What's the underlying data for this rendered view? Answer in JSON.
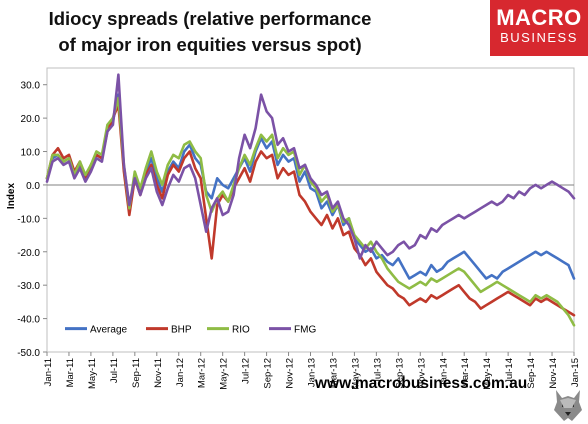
{
  "title_lines": [
    "Idiocy spreads (relative performance",
    "of major iron equities versus spot)"
  ],
  "logo": {
    "line1": "MACRO",
    "line2": "BUSINESS"
  },
  "footer": "www.macrobusiness.com.au",
  "chart_data": {
    "type": "line",
    "ylabel": "Index",
    "xlabel": "",
    "ylim": [
      -50,
      35
    ],
    "yticks": [
      -50,
      -40,
      -30,
      -20,
      -10,
      0,
      10,
      20,
      30
    ],
    "ytick_labels": [
      "-50.0",
      "-40.0",
      "-30.0",
      "-20.0",
      "-10.0",
      "0.0",
      "10.0",
      "20.0",
      "30.0"
    ],
    "xlim": [
      0,
      48
    ],
    "xtick_labels": [
      "Jan-11",
      "Mar-11",
      "May-11",
      "Jul-11",
      "Sep-11",
      "Nov-11",
      "Jan-12",
      "Mar-12",
      "May-12",
      "Jul-12",
      "Sep-12",
      "Nov-12",
      "Jan-13",
      "Mar-13",
      "May-13",
      "Jul-13",
      "Sep-13",
      "Nov-13",
      "Jan-14",
      "Mar-14",
      "May-14",
      "Jul-14",
      "Sep-14",
      "Nov-14",
      "Jan-15"
    ],
    "grid": false,
    "legend_position": "bottom-left",
    "series": [
      {
        "name": "Average",
        "color": "#4472c4",
        "x": [
          0,
          0.5,
          1,
          1.5,
          2,
          2.5,
          3,
          3.5,
          4,
          4.5,
          5,
          5.5,
          6,
          6.5,
          7,
          7.5,
          8,
          8.5,
          9,
          9.5,
          10,
          10.5,
          11,
          11.5,
          12,
          12.5,
          13,
          13.5,
          14,
          14.5,
          15,
          15.5,
          16,
          16.5,
          17,
          17.5,
          18,
          18.5,
          19,
          19.5,
          20,
          20.5,
          21,
          21.5,
          22,
          22.5,
          23,
          23.5,
          24,
          24.5,
          25,
          25.5,
          26,
          26.5,
          27,
          27.5,
          28,
          28.5,
          29,
          29.5,
          30,
          30.5,
          31,
          31.5,
          32,
          32.5,
          33,
          33.5,
          34,
          34.5,
          35,
          35.5,
          36,
          36.5,
          37,
          37.5,
          38,
          38.5,
          39,
          39.5,
          40,
          40.5,
          41,
          41.5,
          42,
          42.5,
          43,
          43.5,
          44,
          44.5,
          45,
          45.5,
          46,
          46.5,
          47,
          47.5,
          48
        ],
        "values": [
          2,
          8,
          9,
          7,
          8,
          3,
          6,
          2,
          5,
          9,
          8,
          17,
          19,
          27,
          5,
          -8,
          3,
          -2,
          4,
          8,
          2,
          -2,
          4,
          7,
          5,
          10,
          12,
          8,
          6,
          -2,
          -4,
          2,
          0,
          -1,
          2,
          5,
          8,
          4,
          10,
          14,
          11,
          13,
          6,
          9,
          7,
          8,
          1,
          4,
          -1,
          -2,
          -7,
          -5,
          -9,
          -6,
          -12,
          -10,
          -16,
          -18,
          -20,
          -19,
          -22,
          -21,
          -23,
          -24,
          -22,
          -25,
          -28,
          -27,
          -26,
          -27,
          -24,
          -26,
          -25,
          -23,
          -22,
          -21,
          -20,
          -22,
          -24,
          -26,
          -28,
          -27,
          -28,
          -26,
          -25,
          -24,
          -23,
          -22,
          -21,
          -20,
          -21,
          -20,
          -21,
          -22,
          -23,
          -24,
          -28
        ]
      },
      {
        "name": "BHP",
        "color": "#c0392b",
        "x": [
          0,
          0.5,
          1,
          1.5,
          2,
          2.5,
          3,
          3.5,
          4,
          4.5,
          5,
          5.5,
          6,
          6.5,
          7,
          7.5,
          8,
          8.5,
          9,
          9.5,
          10,
          10.5,
          11,
          11.5,
          12,
          12.5,
          13,
          13.5,
          14,
          14.5,
          15,
          15.5,
          16,
          16.5,
          17,
          17.5,
          18,
          18.5,
          19,
          19.5,
          20,
          20.5,
          21,
          21.5,
          22,
          22.5,
          23,
          23.5,
          24,
          24.5,
          25,
          25.5,
          26,
          26.5,
          27,
          27.5,
          28,
          28.5,
          29,
          29.5,
          30,
          30.5,
          31,
          31.5,
          32,
          32.5,
          33,
          33.5,
          34,
          34.5,
          35,
          35.5,
          36,
          36.5,
          37,
          37.5,
          38,
          38.5,
          39,
          39.5,
          40,
          40.5,
          41,
          41.5,
          42,
          42.5,
          43,
          43.5,
          44,
          44.5,
          45,
          45.5,
          46,
          46.5,
          47,
          47.5,
          48
        ],
        "values": [
          2,
          9,
          11,
          8,
          9,
          4,
          7,
          2,
          6,
          9,
          8,
          16,
          20,
          24,
          4,
          -9,
          2,
          -3,
          3,
          6,
          0,
          -4,
          3,
          6,
          4,
          8,
          10,
          5,
          2,
          -10,
          -22,
          -6,
          -3,
          -5,
          -1,
          2,
          5,
          1,
          7,
          10,
          8,
          9,
          2,
          5,
          3,
          4,
          -3,
          -5,
          -8,
          -10,
          -12,
          -9,
          -13,
          -10,
          -15,
          -14,
          -19,
          -21,
          -24,
          -22,
          -26,
          -28,
          -30,
          -31,
          -33,
          -34,
          -36,
          -35,
          -34,
          -35,
          -33,
          -34,
          -33,
          -32,
          -31,
          -30,
          -32,
          -34,
          -35,
          -37,
          -36,
          -35,
          -34,
          -33,
          -32,
          -33,
          -34,
          -35,
          -36,
          -34,
          -35,
          -34,
          -35,
          -36,
          -37,
          -38,
          -39
        ]
      },
      {
        "name": "RIO",
        "color": "#8fbc45",
        "x": [
          0,
          0.5,
          1,
          1.5,
          2,
          2.5,
          3,
          3.5,
          4,
          4.5,
          5,
          5.5,
          6,
          6.5,
          7,
          7.5,
          8,
          8.5,
          9,
          9.5,
          10,
          10.5,
          11,
          11.5,
          12,
          12.5,
          13,
          13.5,
          14,
          14.5,
          15,
          15.5,
          16,
          16.5,
          17,
          17.5,
          18,
          18.5,
          19,
          19.5,
          20,
          20.5,
          21,
          21.5,
          22,
          22.5,
          23,
          23.5,
          24,
          24.5,
          25,
          25.5,
          26,
          26.5,
          27,
          27.5,
          28,
          28.5,
          29,
          29.5,
          30,
          30.5,
          31,
          31.5,
          32,
          32.5,
          33,
          33.5,
          34,
          34.5,
          35,
          35.5,
          36,
          36.5,
          37,
          37.5,
          38,
          38.5,
          39,
          39.5,
          40,
          40.5,
          41,
          41.5,
          42,
          42.5,
          43,
          43.5,
          44,
          44.5,
          45,
          45.5,
          46,
          46.5,
          47,
          47.5,
          48
        ],
        "values": [
          2,
          9,
          9,
          7,
          8,
          3,
          7,
          3,
          6,
          10,
          9,
          18,
          20,
          26,
          6,
          -7,
          4,
          -1,
          5,
          10,
          4,
          0,
          6,
          9,
          8,
          12,
          13,
          10,
          8,
          -3,
          -8,
          -4,
          -2,
          -5,
          0,
          5,
          9,
          6,
          11,
          15,
          13,
          15,
          8,
          11,
          9,
          10,
          3,
          6,
          1,
          -1,
          -5,
          -3,
          -8,
          -6,
          -11,
          -10,
          -15,
          -17,
          -19,
          -17,
          -20,
          -22,
          -25,
          -27,
          -29,
          -30,
          -31,
          -30,
          -29,
          -30,
          -28,
          -29,
          -28,
          -27,
          -26,
          -25,
          -26,
          -28,
          -30,
          -32,
          -31,
          -30,
          -29,
          -30,
          -31,
          -32,
          -33,
          -34,
          -35,
          -33,
          -34,
          -33,
          -34,
          -35,
          -37,
          -39,
          -42
        ]
      },
      {
        "name": "FMG",
        "color": "#7b52a6",
        "x": [
          0,
          0.5,
          1,
          1.5,
          2,
          2.5,
          3,
          3.5,
          4,
          4.5,
          5,
          5.5,
          6,
          6.5,
          7,
          7.5,
          8,
          8.5,
          9,
          9.5,
          10,
          10.5,
          11,
          11.5,
          12,
          12.5,
          13,
          13.5,
          14,
          14.5,
          15,
          15.5,
          16,
          16.5,
          17,
          17.5,
          18,
          18.5,
          19,
          19.5,
          20,
          20.5,
          21,
          21.5,
          22,
          22.5,
          23,
          23.5,
          24,
          24.5,
          25,
          25.5,
          26,
          26.5,
          27,
          27.5,
          28,
          28.5,
          29,
          29.5,
          30,
          30.5,
          31,
          31.5,
          32,
          32.5,
          33,
          33.5,
          34,
          34.5,
          35,
          35.5,
          36,
          36.5,
          37,
          37.5,
          38,
          38.5,
          39,
          39.5,
          40,
          40.5,
          41,
          41.5,
          42,
          42.5,
          43,
          43.5,
          44,
          44.5,
          45,
          45.5,
          46,
          46.5,
          47,
          47.5,
          48
        ],
        "values": [
          1,
          7,
          8,
          6,
          7,
          2,
          5,
          1,
          4,
          8,
          7,
          16,
          18,
          33,
          6,
          -6,
          2,
          -3,
          2,
          5,
          -2,
          -6,
          -1,
          3,
          1,
          5,
          6,
          2,
          -6,
          -14,
          -7,
          -4,
          -9,
          -8,
          -3,
          8,
          15,
          11,
          17,
          27,
          22,
          20,
          12,
          14,
          10,
          11,
          5,
          6,
          2,
          0,
          -3,
          -2,
          -7,
          -5,
          -10,
          -12,
          -16,
          -22,
          -18,
          -20,
          -17,
          -19,
          -21,
          -20,
          -18,
          -17,
          -19,
          -18,
          -15,
          -16,
          -13,
          -14,
          -12,
          -11,
          -10,
          -9,
          -10,
          -9,
          -8,
          -7,
          -6,
          -5,
          -6,
          -5,
          -3,
          -4,
          -2,
          -3,
          -1,
          0,
          -1,
          0,
          1,
          0,
          -1,
          -2,
          -4
        ]
      }
    ]
  }
}
